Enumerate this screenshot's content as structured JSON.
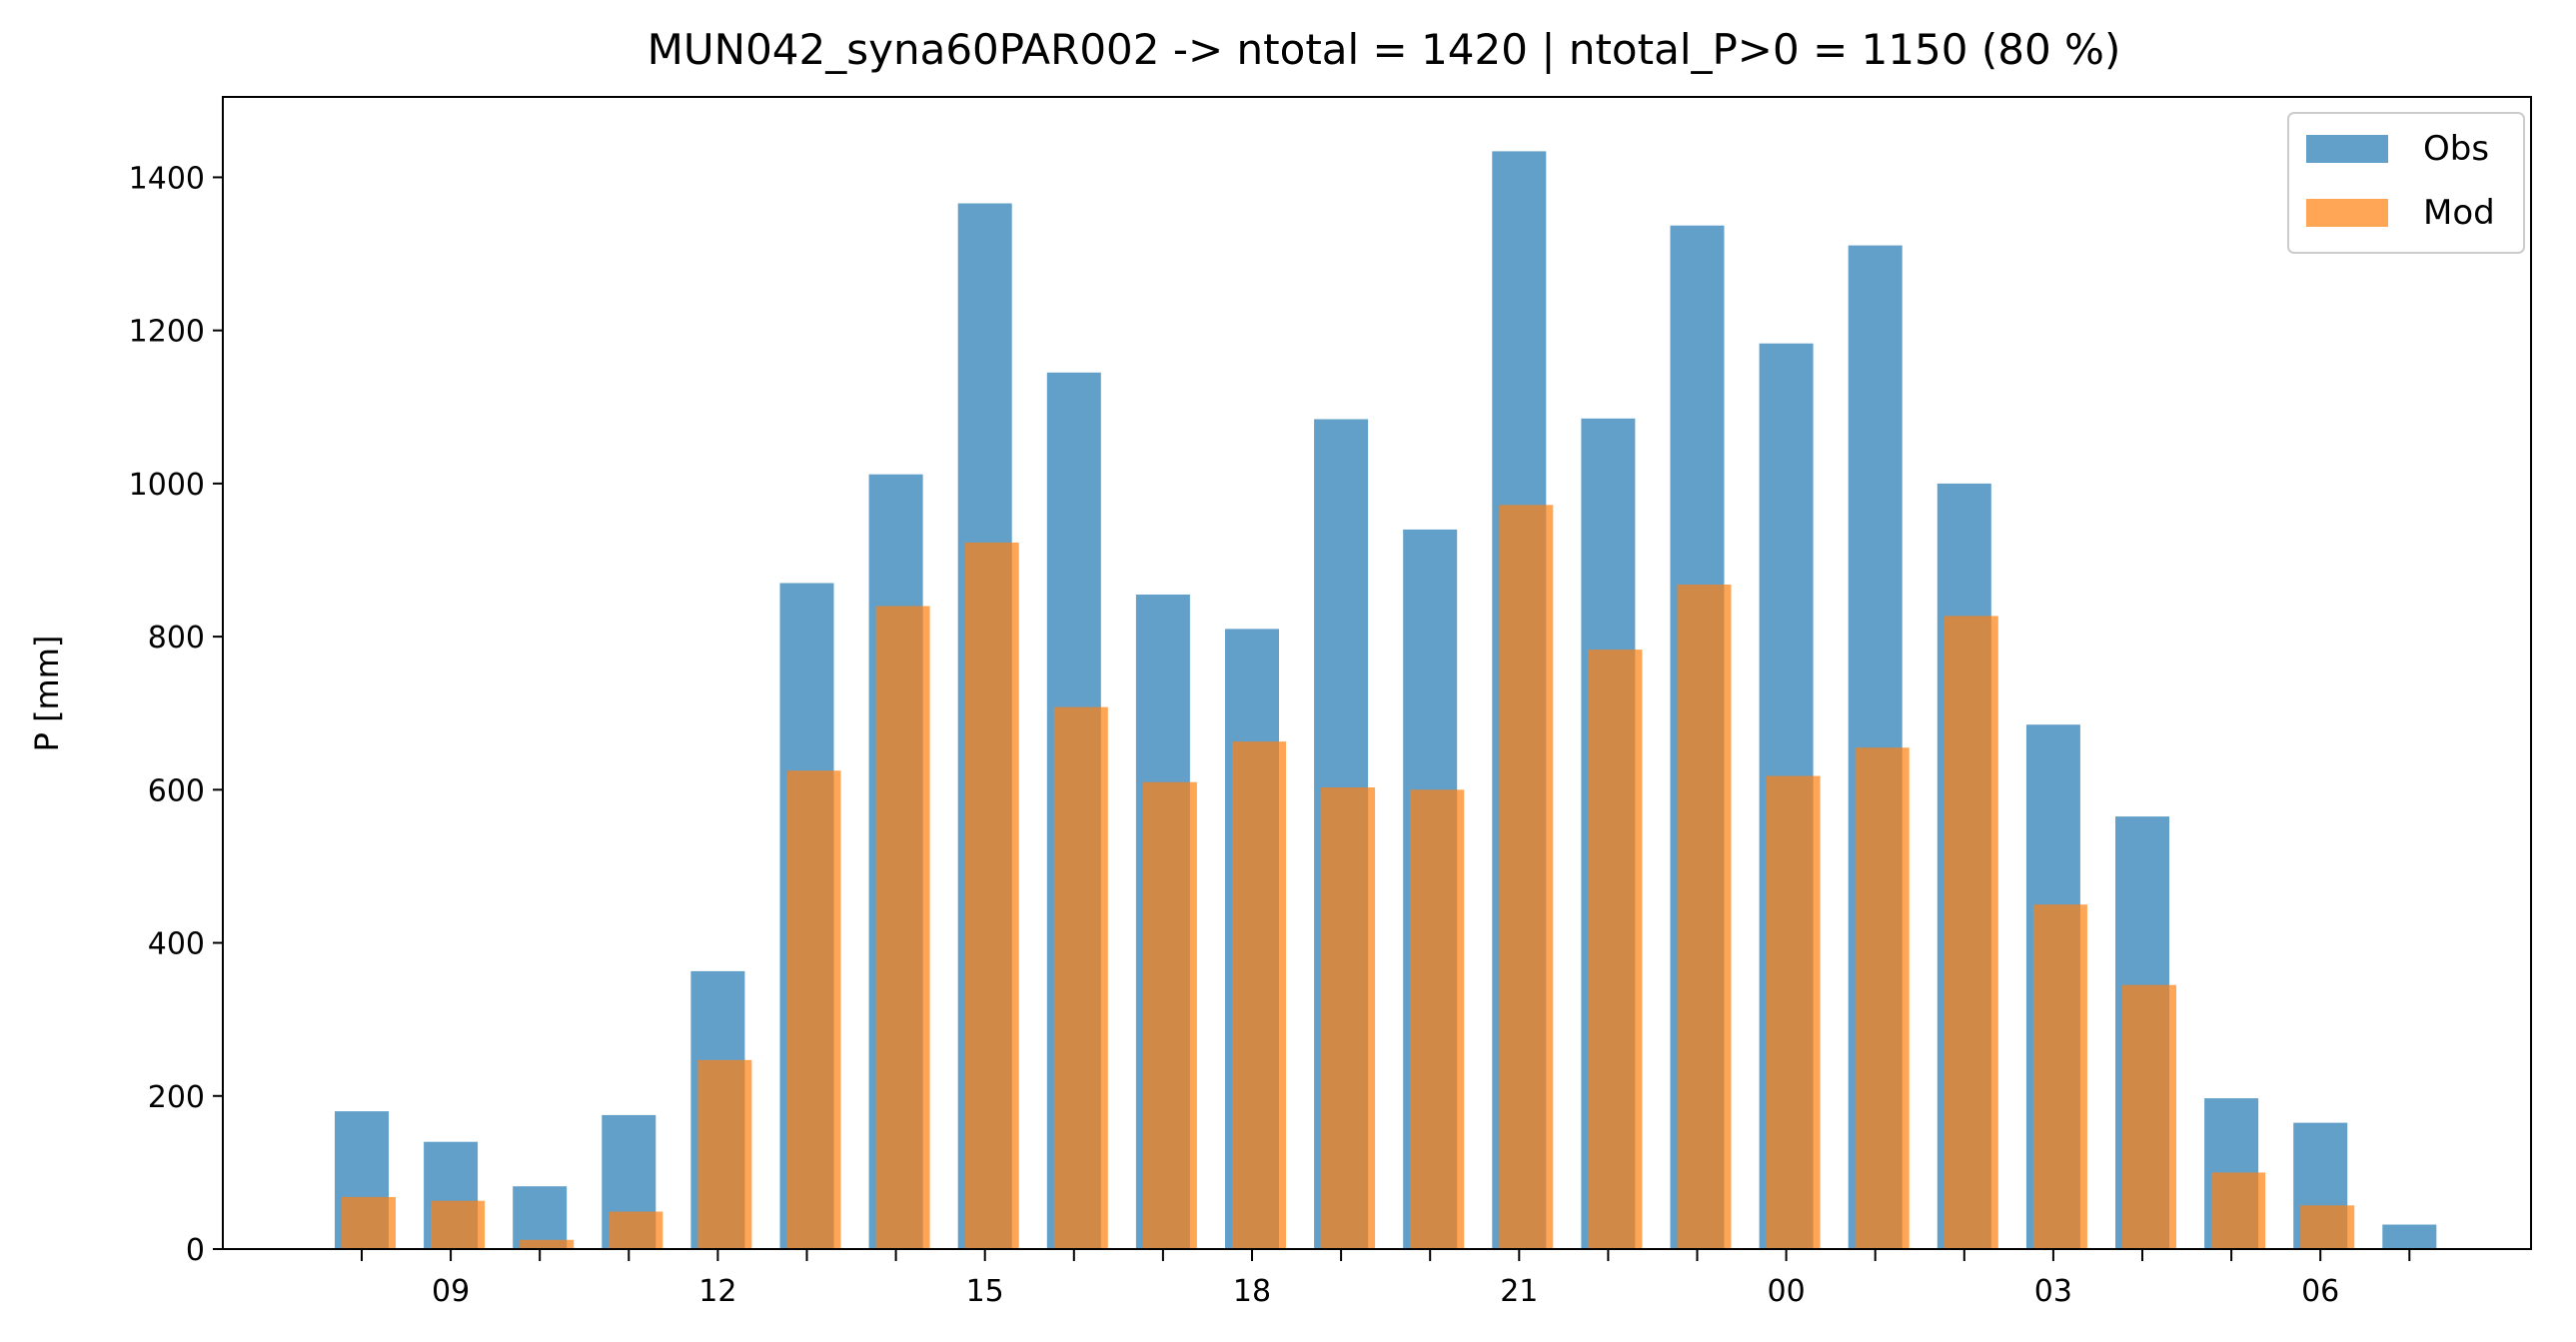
{
  "chart_data": {
    "type": "bar",
    "title": "MUN042_syna60PAR002 -> ntotal = 1420 | ntotal_P>0 = 1150 (80 %)",
    "xlabel": "",
    "ylabel": "P [mm]",
    "ylim": [
      0,
      1505
    ],
    "yticks": [
      0,
      200,
      400,
      600,
      800,
      1000,
      1200,
      1400
    ],
    "xtick_labels": [
      "09",
      "12",
      "15",
      "18",
      "21",
      "00",
      "03",
      "06"
    ],
    "legend_position": "top-right",
    "grid": false,
    "series": [
      {
        "name": "Obs",
        "color": "#1f77b4",
        "values": [
          180,
          140,
          82,
          175,
          363,
          870,
          1012,
          1366,
          1145,
          855,
          810,
          1084,
          940,
          1434,
          1085,
          1337,
          1183,
          1311,
          1000,
          685,
          565,
          197,
          165,
          32
        ]
      },
      {
        "name": "Mod",
        "color": "#ff7f0e",
        "values": [
          68,
          63,
          12,
          49,
          247,
          625,
          840,
          923,
          708,
          610,
          663,
          603,
          600,
          972,
          783,
          868,
          618,
          655,
          827,
          450,
          345,
          100,
          57,
          0
        ]
      }
    ]
  }
}
